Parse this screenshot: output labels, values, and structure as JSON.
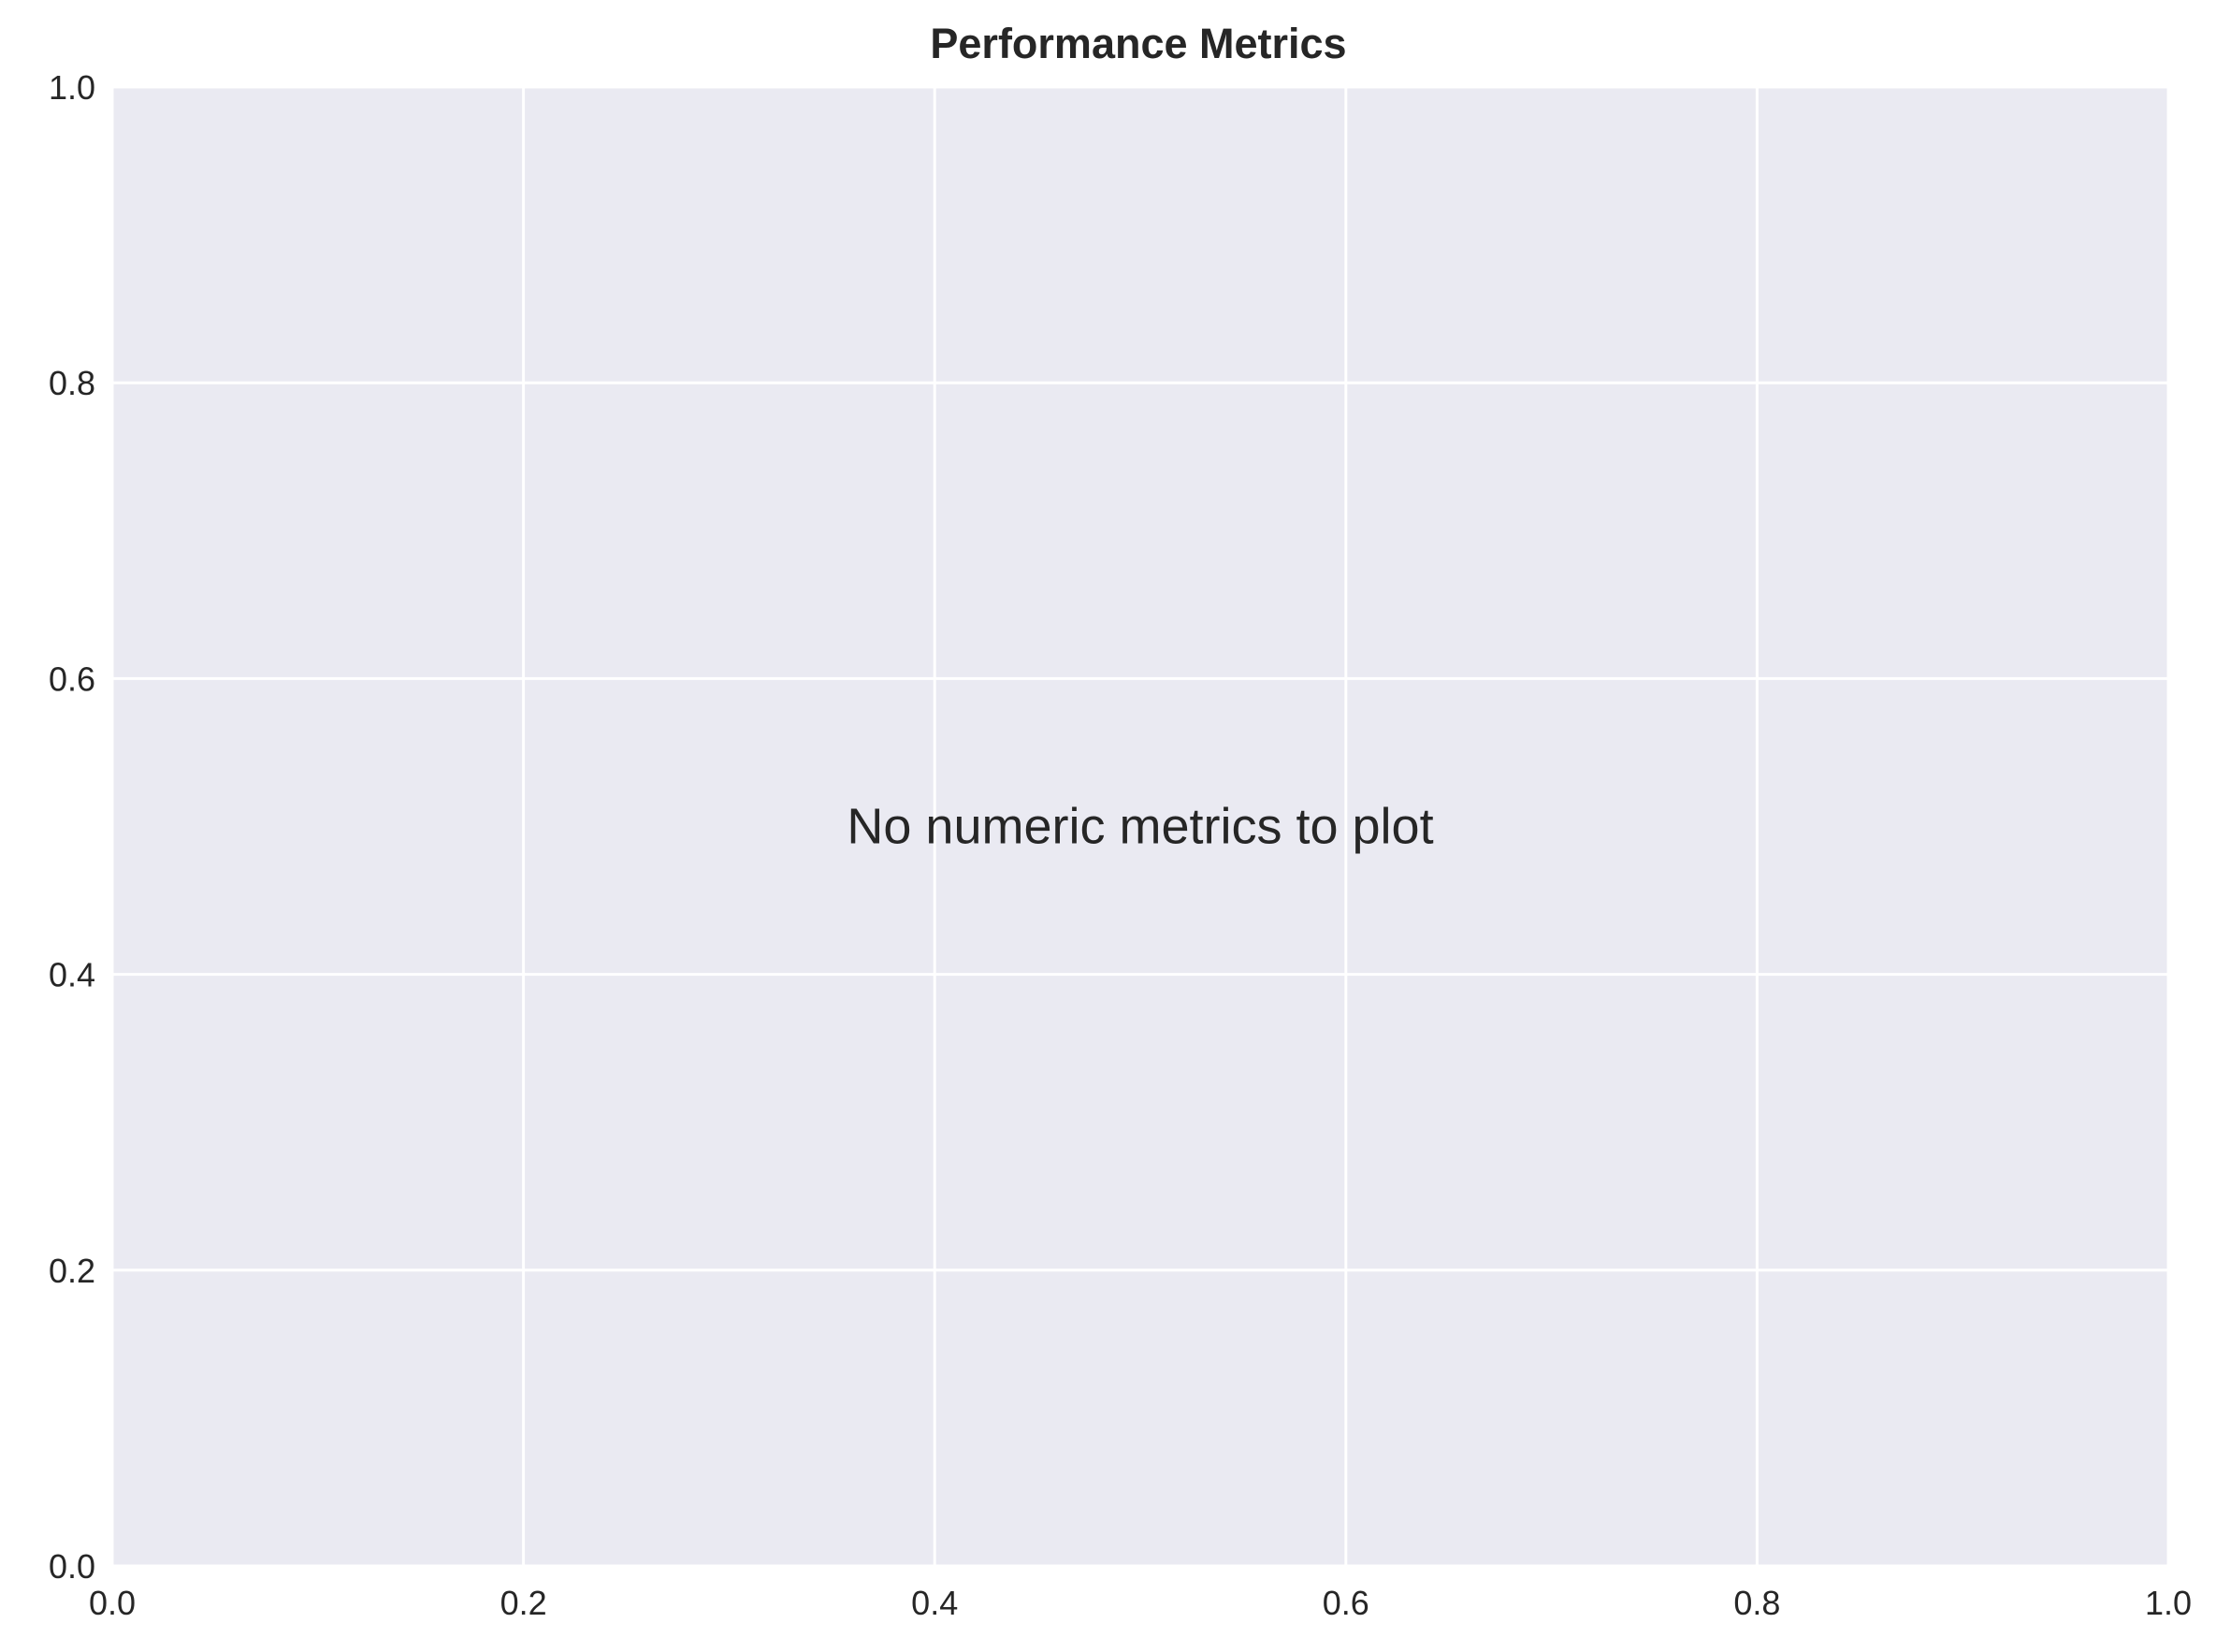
{
  "chart_data": {
    "type": "line",
    "title": "Performance Metrics",
    "xlabel": "",
    "ylabel": "",
    "xlim": [
      0.0,
      1.0
    ],
    "ylim": [
      0.0,
      1.0
    ],
    "x_ticks": [
      "0.0",
      "0.2",
      "0.4",
      "0.6",
      "0.8",
      "1.0"
    ],
    "y_ticks": [
      "0.0",
      "0.2",
      "0.4",
      "0.6",
      "0.8",
      "1.0"
    ],
    "grid": true,
    "series": [],
    "annotations": [
      {
        "text": "No numeric metrics to plot",
        "x": 0.5,
        "y": 0.5
      }
    ]
  },
  "colors": {
    "plot_background": "#eaeaf2",
    "grid": "#ffffff",
    "text": "#262626",
    "page_background": "#ffffff"
  }
}
